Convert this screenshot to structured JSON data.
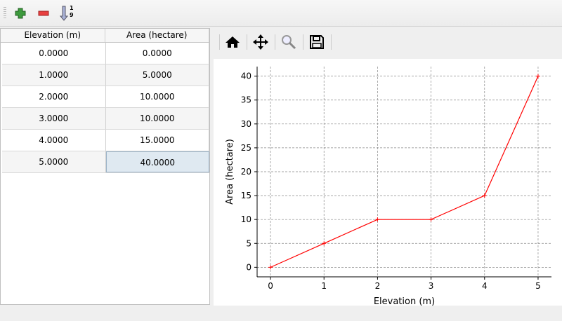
{
  "toolbar": {
    "add": "add-row",
    "remove": "remove-row",
    "sort": "sort-ascending",
    "sort_glyph_top": "1",
    "sort_glyph_bottom": "9"
  },
  "table": {
    "headers": [
      "Elevation (m)",
      "Area (hectare)"
    ],
    "rows": [
      [
        "0.0000",
        "0.0000"
      ],
      [
        "1.0000",
        "5.0000"
      ],
      [
        "2.0000",
        "10.0000"
      ],
      [
        "3.0000",
        "10.0000"
      ],
      [
        "4.0000",
        "15.0000"
      ],
      [
        "5.0000",
        "40.0000"
      ]
    ],
    "selected_cell": [
      5,
      1
    ]
  },
  "plot_toolbar": {
    "home": "home-icon",
    "pan": "pan-icon",
    "zoom": "zoom-icon",
    "save": "save-icon"
  },
  "chart_data": {
    "type": "line",
    "x": [
      0,
      1,
      2,
      3,
      4,
      5
    ],
    "y": [
      0,
      5,
      10,
      10,
      15,
      40
    ],
    "xlabel": "Elevation (m)",
    "ylabel": "Area (hectare)",
    "xlim": [
      -0.25,
      5.25
    ],
    "ylim": [
      -2,
      42
    ],
    "xticks": [
      "0",
      "1",
      "2",
      "3",
      "4",
      "5"
    ],
    "yticks": [
      "0",
      "5",
      "10",
      "15",
      "20",
      "25",
      "30",
      "35",
      "40"
    ],
    "grid": true,
    "color": "#ff0000",
    "marker": "+"
  }
}
